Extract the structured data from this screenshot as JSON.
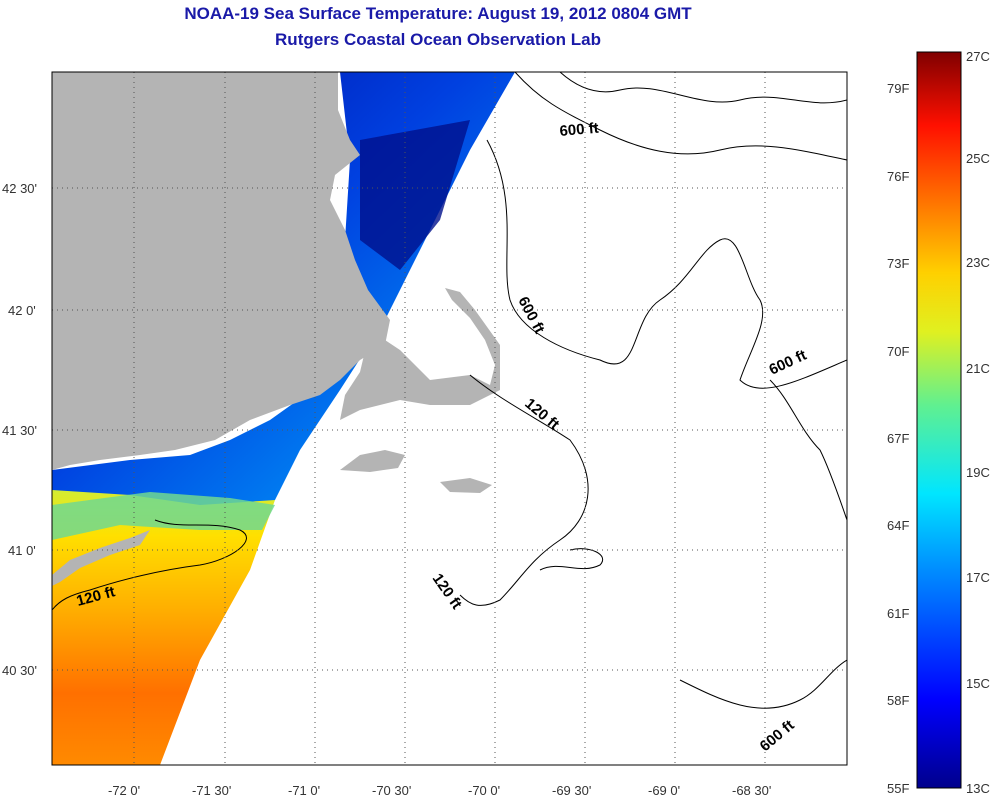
{
  "title": {
    "line1": "NOAA-19 Sea Surface Temperature:  August 19, 2012 0804 GMT",
    "line2": "Rutgers Coastal Ocean Observation Lab"
  },
  "map": {
    "lon_ticks": [
      "-72 0'",
      "-71 30'",
      "-71 0'",
      "-70 30'",
      "-70 0'",
      "-69 30'",
      "-69 0'",
      "-68 30'"
    ],
    "lat_ticks": [
      "42 30'",
      "42 0'",
      "41 30'",
      "41 0'",
      "40 30'"
    ],
    "contours": [
      "600 ft",
      "600 ft",
      "600 ft",
      "600 ft",
      "120 ft",
      "120 ft",
      "120 ft"
    ]
  },
  "colorbar": {
    "celsius": [
      "27C",
      "25C",
      "23C",
      "21C",
      "19C",
      "17C",
      "15C",
      "13C"
    ],
    "fahrenheit": [
      "79F",
      "76F",
      "73F",
      "70F",
      "67F",
      "64F",
      "61F",
      "58F",
      "55F"
    ]
  },
  "colors": {
    "land": "#b4b4b4",
    "title": "#1a1aa8"
  }
}
